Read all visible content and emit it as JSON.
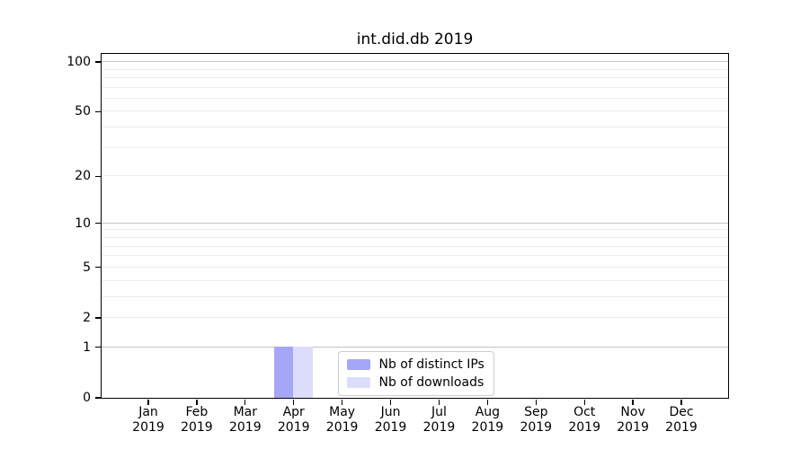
{
  "chart_data": {
    "type": "bar",
    "title": "int.did.db 2019",
    "categories": [
      "Jan 2019",
      "Feb 2019",
      "Mar 2019",
      "Apr 2019",
      "May 2019",
      "Jun 2019",
      "Jul 2019",
      "Aug 2019",
      "Sep 2019",
      "Oct 2019",
      "Nov 2019",
      "Dec 2019"
    ],
    "x_tick_labels": [
      [
        "Jan",
        "2019"
      ],
      [
        "Feb",
        "2019"
      ],
      [
        "Mar",
        "2019"
      ],
      [
        "Apr",
        "2019"
      ],
      [
        "May",
        "2019"
      ],
      [
        "Jun",
        "2019"
      ],
      [
        "Jul",
        "2019"
      ],
      [
        "Aug",
        "2019"
      ],
      [
        "Sep",
        "2019"
      ],
      [
        "Oct",
        "2019"
      ],
      [
        "Nov",
        "2019"
      ],
      [
        "Dec",
        "2019"
      ]
    ],
    "series": [
      {
        "name": "Nb of distinct IPs",
        "color": "#a6a6f6",
        "values": [
          0,
          0,
          0,
          1,
          0,
          0,
          0,
          0,
          0,
          0,
          0,
          0
        ]
      },
      {
        "name": "Nb of downloads",
        "color": "#dcdcfb",
        "values": [
          0,
          0,
          0,
          1,
          0,
          0,
          0,
          0,
          0,
          0,
          0,
          0
        ]
      }
    ],
    "xlabel": "",
    "ylabel": "",
    "y_scale": "log1p",
    "ylim": [
      0,
      112
    ],
    "y_ticks": [
      0,
      1,
      2,
      5,
      10,
      20,
      50,
      100
    ],
    "grid": {
      "major_values": [
        1,
        10,
        100
      ],
      "minor_values": [
        2,
        3,
        4,
        5,
        6,
        7,
        8,
        9,
        20,
        30,
        40,
        50,
        60,
        70,
        80,
        90
      ],
      "major_color": "#c3c3c3",
      "minor_color": "#ebebeb"
    },
    "legend": {
      "position": "lower center",
      "entries": [
        "Nb of distinct IPs",
        "Nb of downloads"
      ]
    }
  }
}
